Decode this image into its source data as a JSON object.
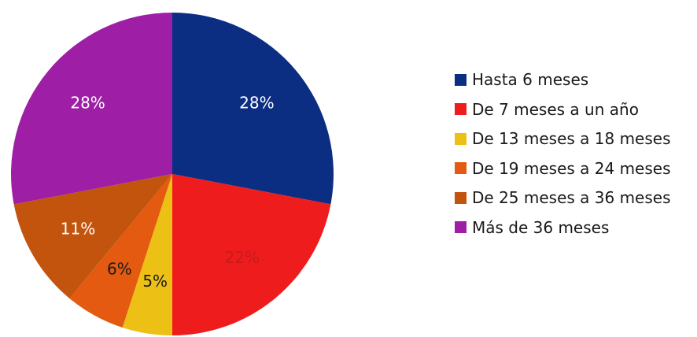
{
  "chart_data": {
    "type": "pie",
    "categories": [
      "Hasta 6 meses",
      "De 7 meses a un año",
      "De 13 meses a 18 meses",
      "De 19 meses a 24 meses",
      "De 25 meses a 36 meses",
      "Más de 36 meses"
    ],
    "values": [
      28,
      22,
      5,
      6,
      11,
      28
    ],
    "labels": [
      "28%",
      "22%",
      "5%",
      "6%",
      "11%",
      "28%"
    ],
    "colors": [
      "#0b2d82",
      "#ee1c1c",
      "#ecc015",
      "#e35a10",
      "#c2540e",
      "#9e1fa6"
    ],
    "label_colors": [
      "#ffffff",
      "#c81b1b",
      "#1a1a1a",
      "#1a1a1a",
      "#ffffff",
      "#ffffff"
    ],
    "start": "12 o'clock",
    "direction": "clockwise",
    "legend_position": "right"
  }
}
